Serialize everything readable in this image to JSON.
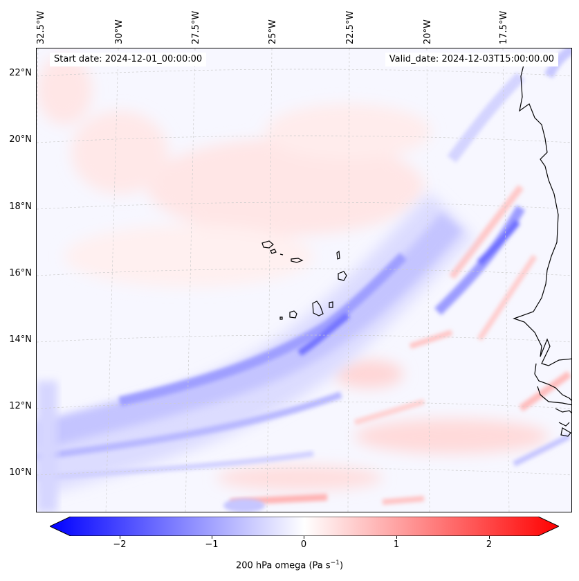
{
  "header": {
    "start_date": "Start date: 2024-12-01_00:00:00",
    "valid_date": "Valid_date: 2024-12-03T15:00:00.00"
  },
  "map": {
    "projection": "lambert-conformal",
    "extent": {
      "lon_min": -33.0,
      "lon_max": -15.3,
      "lat_min": 8.9,
      "lat_max": 22.7
    },
    "longitude_ticks": [
      "32.5°W",
      "30°W",
      "27.5°W",
      "25°W",
      "22.5°W",
      "20°W",
      "17.5°W"
    ],
    "latitude_ticks": [
      "22°N",
      "20°N",
      "18°N",
      "16°N",
      "14°N",
      "12°N",
      "10°N"
    ],
    "gridlines": true,
    "coastline_color": "#000000",
    "features": [
      "Cape Verde Islands",
      "West African coast"
    ]
  },
  "field": {
    "variable": "200 hPa omega",
    "units": "Pa s^-1",
    "dominant_pattern": "SW-NE band of ascent (negative omega) from ~11°N 33°W to ~17°N 18°W",
    "min_shown": -2.5,
    "max_shown": 2.5
  },
  "colorbar": {
    "cmap": "bwr",
    "low_color": "#0000ff",
    "mid_color": "#ffffff",
    "high_color": "#ff0000",
    "ticks": [
      "−2",
      "−1",
      "0",
      "1",
      "2"
    ],
    "tick_values": [
      -2,
      -1,
      0,
      1,
      2
    ],
    "range": [
      -2.6,
      2.6
    ],
    "extend": "both",
    "label_main": "200 hPa omega (Pa s",
    "label_sup": "−1",
    "label_end": ")"
  }
}
